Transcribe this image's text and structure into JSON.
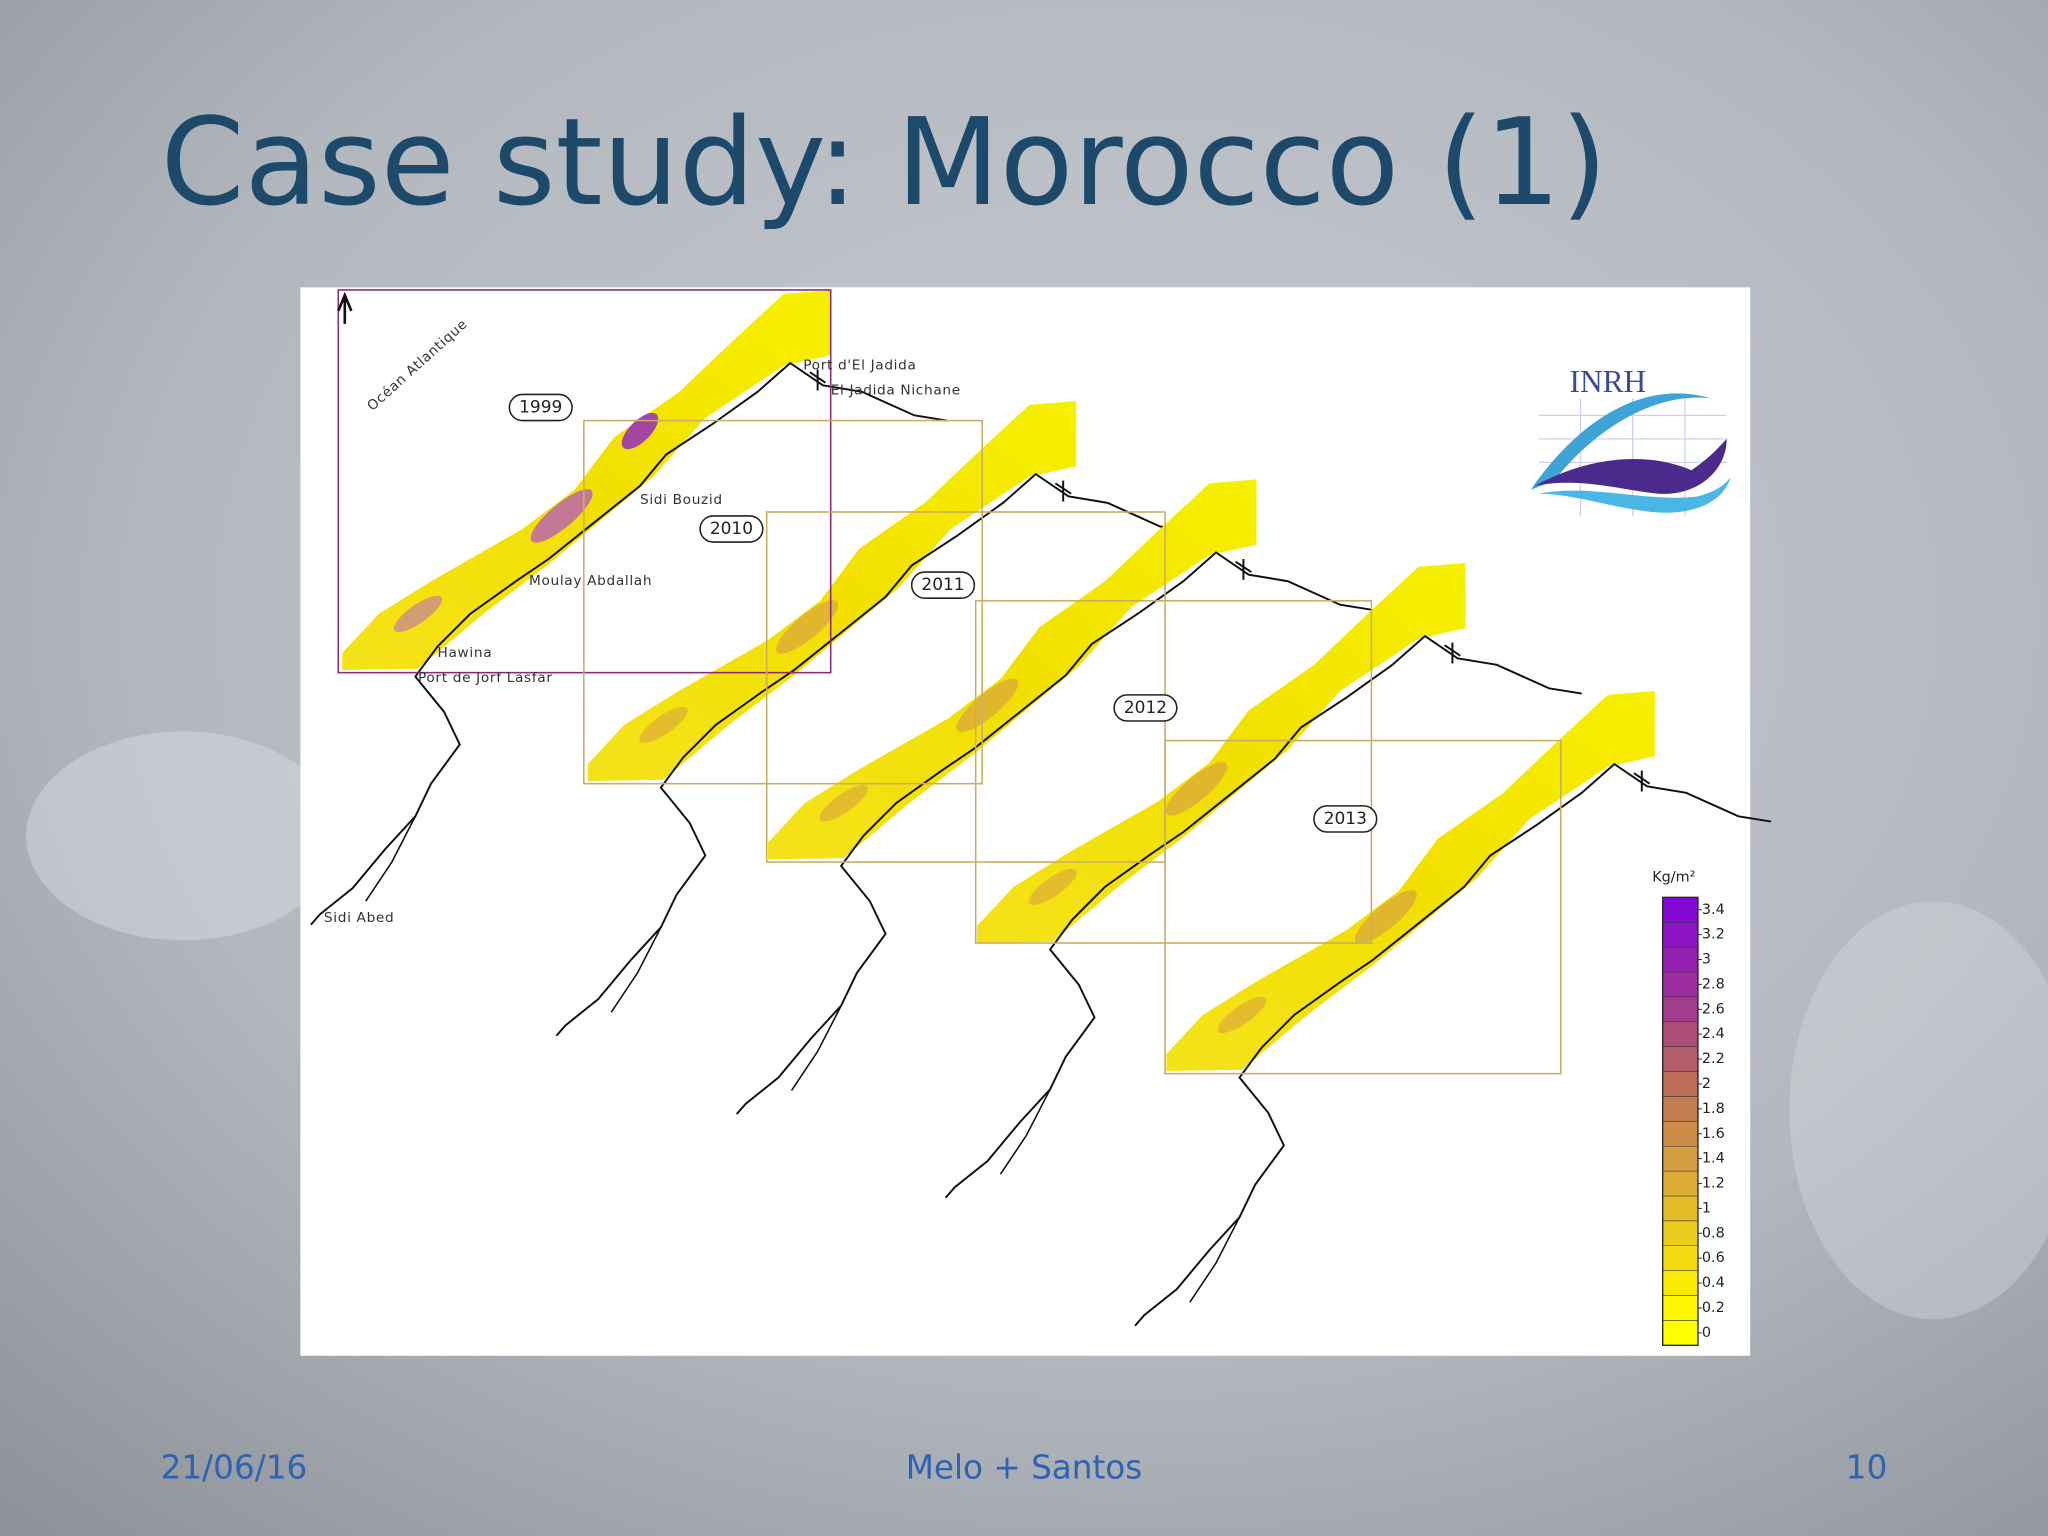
{
  "slide": {
    "title": "Case study: Morocco (1)",
    "footer": {
      "date": "21/06/16",
      "author": "Melo + Santos",
      "page": "10"
    },
    "map": {
      "logo": "INRH",
      "ocean": "Océan Atlantique",
      "years": [
        "1999",
        "2010",
        "2011",
        "2012",
        "2013"
      ],
      "places": [
        "Port d'El Jadida",
        "El Jadida Nichane",
        "Sidi Bouzid",
        "Moulay Abdallah",
        "Hawina",
        "Port de Jorf Lasfar",
        "Sidi Abed"
      ],
      "legend": {
        "title": "Kg/m²",
        "ticks": [
          0,
          0.2,
          0.4,
          0.6,
          0.8,
          1,
          1.2,
          1.4,
          1.6,
          1.8,
          2,
          2.2,
          2.4,
          2.6,
          2.8,
          3,
          3.2,
          3.4
        ],
        "colors": [
          "#ffff00",
          "#fcf600",
          "#f8ea00",
          "#f4dc10",
          "#eccc1c",
          "#e4bc28",
          "#dcac34",
          "#d49c40",
          "#cc8c48",
          "#c47c50",
          "#bc6c58",
          "#b45c68",
          "#ac4c78",
          "#a43c8c",
          "#9c2ca0",
          "#9420b4",
          "#8c14c4",
          "#8408d4"
        ]
      }
    }
  }
}
